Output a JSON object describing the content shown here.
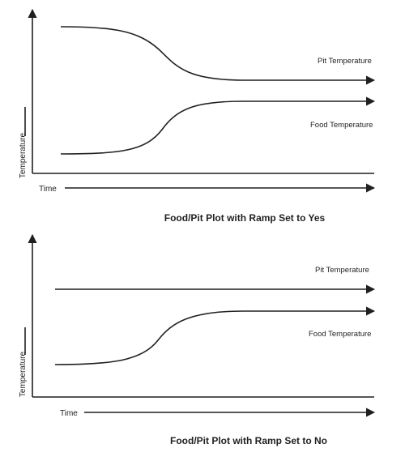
{
  "charts": [
    {
      "caption": "Food/Pit Plot with Ramp Set to Yes",
      "chart_data": {
        "type": "line",
        "xlabel": "Time",
        "ylabel": "Temperature",
        "series": [
          {
            "name": "Pit Temperature",
            "trend": "high plateau, decreasing, then constant lower plateau"
          },
          {
            "name": "Food Temperature",
            "trend": "low start, increasing, then constant plateau"
          }
        ]
      }
    },
    {
      "caption": "Food/Pit Plot with Ramp Set to No",
      "chart_data": {
        "type": "line",
        "xlabel": "Time",
        "ylabel": "Temperature",
        "series": [
          {
            "name": "Pit Temperature",
            "trend": "constant"
          },
          {
            "name": "Food Temperature",
            "trend": "low start, increasing, then constant plateau"
          }
        ]
      }
    }
  ]
}
